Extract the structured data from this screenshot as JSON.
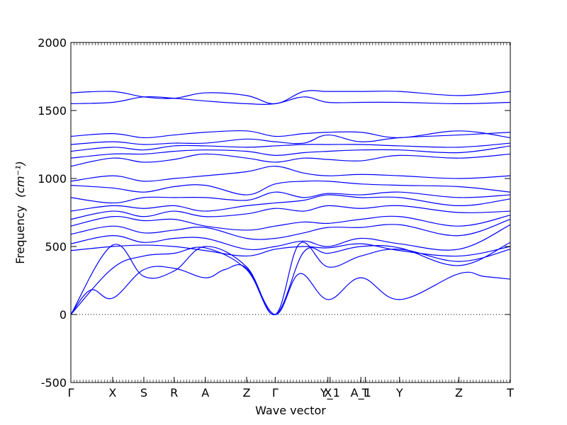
{
  "chart_data": {
    "type": "line",
    "xlabel": "Wave vector",
    "ylabel": "Frequency",
    "ylabel_unit": "(cm⁻¹)",
    "ylim": [
      -500,
      2000
    ],
    "yticks": [
      -500,
      0,
      500,
      1000,
      1500,
      2000
    ],
    "grid": false,
    "line_color": "#0000ff",
    "zero_line": {
      "y": 0,
      "style": "dotted",
      "color": "#000000"
    },
    "high_symmetry_points": [
      {
        "label": "Γ",
        "x": 0.0
      },
      {
        "label": "X",
        "x": 0.095
      },
      {
        "label": "S",
        "x": 0.166
      },
      {
        "label": "R",
        "x": 0.235
      },
      {
        "label": "A",
        "x": 0.306
      },
      {
        "label": "Z",
        "x": 0.4
      },
      {
        "label": "Γ",
        "x": 0.465
      },
      {
        "label": "X",
        "x": 0.585
      },
      {
        "label": "Y_1",
        "x": 0.59
      },
      {
        "label": "A_1",
        "x": 0.66
      },
      {
        "label": "T",
        "x": 0.67
      },
      {
        "label": "Y",
        "x": 0.748
      },
      {
        "label": "Z",
        "x": 0.883
      },
      {
        "label": "T",
        "x": 1.0
      }
    ],
    "series": [
      {
        "x": [
          0,
          0.045,
          0.095,
          0.166,
          0.235,
          0.306,
          0.35,
          0.4,
          0.465,
          0.52,
          0.585,
          0.66,
          0.748,
          0.883,
          0.94,
          1.0
        ],
        "values": [
          0,
          180,
          120,
          330,
          340,
          270,
          330,
          340,
          0,
          300,
          110,
          270,
          110,
          300,
          280,
          260
        ]
      },
      {
        "x": [
          0,
          0.095,
          0.166,
          0.235,
          0.306,
          0.4,
          0.465,
          0.52,
          0.585,
          0.66,
          0.748,
          0.883,
          1.0
        ],
        "values": [
          0,
          510,
          280,
          320,
          500,
          350,
          0,
          520,
          350,
          430,
          480,
          390,
          480
        ]
      },
      {
        "x": [
          0,
          0.095,
          0.166,
          0.235,
          0.306,
          0.4,
          0.465,
          0.53,
          0.585,
          0.66,
          0.748,
          0.883,
          1.0
        ],
        "values": [
          0,
          340,
          430,
          450,
          490,
          330,
          0,
          460,
          450,
          500,
          490,
          360,
          530
        ]
      },
      {
        "x": [
          0,
          0.095,
          0.166,
          0.235,
          0.306,
          0.4,
          0.465,
          0.53,
          0.585,
          0.66,
          0.748,
          0.883,
          1.0
        ],
        "values": [
          470,
          500,
          510,
          500,
          470,
          430,
          480,
          500,
          490,
          520,
          470,
          430,
          500
        ]
      },
      {
        "x": [
          0,
          0.095,
          0.166,
          0.235,
          0.306,
          0.4,
          0.465,
          0.53,
          0.585,
          0.66,
          0.748,
          0.883,
          1.0
        ],
        "values": [
          520,
          580,
          530,
          560,
          560,
          480,
          500,
          540,
          500,
          560,
          520,
          480,
          660
        ]
      },
      {
        "x": [
          0,
          0.095,
          0.166,
          0.235,
          0.306,
          0.4,
          0.465,
          0.53,
          0.585,
          0.66,
          0.748,
          0.883,
          1.0
        ],
        "values": [
          590,
          650,
          600,
          620,
          640,
          560,
          560,
          600,
          640,
          640,
          660,
          580,
          700
        ]
      },
      {
        "x": [
          0,
          0.095,
          0.166,
          0.235,
          0.306,
          0.4,
          0.465,
          0.53,
          0.585,
          0.66,
          0.748,
          0.883,
          1.0
        ],
        "values": [
          650,
          720,
          690,
          700,
          650,
          620,
          650,
          680,
          670,
          700,
          720,
          650,
          730
        ]
      },
      {
        "x": [
          0,
          0.095,
          0.166,
          0.235,
          0.306,
          0.4,
          0.465,
          0.53,
          0.585,
          0.66,
          0.748,
          0.883,
          1.0
        ],
        "values": [
          700,
          760,
          720,
          760,
          720,
          740,
          780,
          760,
          800,
          780,
          800,
          750,
          760
        ]
      },
      {
        "x": [
          0,
          0.095,
          0.166,
          0.235,
          0.306,
          0.4,
          0.465,
          0.53,
          0.585,
          0.66,
          0.748,
          0.883,
          1.0
        ],
        "values": [
          760,
          800,
          780,
          800,
          760,
          800,
          820,
          840,
          880,
          860,
          860,
          800,
          850
        ]
      },
      {
        "x": [
          0,
          0.095,
          0.166,
          0.235,
          0.306,
          0.4,
          0.465,
          0.53,
          0.585,
          0.66,
          0.748,
          0.883,
          1.0
        ],
        "values": [
          860,
          820,
          860,
          860,
          860,
          840,
          900,
          860,
          890,
          880,
          900,
          860,
          880
        ]
      },
      {
        "x": [
          0,
          0.095,
          0.166,
          0.235,
          0.306,
          0.4,
          0.465,
          0.53,
          0.585,
          0.66,
          0.748,
          0.883,
          1.0
        ],
        "values": [
          950,
          930,
          900,
          940,
          950,
          880,
          960,
          980,
          980,
          960,
          950,
          940,
          900
        ]
      },
      {
        "x": [
          0,
          0.095,
          0.166,
          0.235,
          0.306,
          0.4,
          0.465,
          0.53,
          0.585,
          0.66,
          0.748,
          0.883,
          1.0
        ],
        "values": [
          980,
          1020,
          980,
          1000,
          1020,
          1050,
          1090,
          1040,
          1020,
          1030,
          1020,
          1000,
          1020
        ]
      },
      {
        "x": [
          0,
          0.095,
          0.166,
          0.235,
          0.306,
          0.4,
          0.465,
          0.53,
          0.585,
          0.66,
          0.748,
          0.883,
          1.0
        ],
        "values": [
          1090,
          1150,
          1120,
          1140,
          1180,
          1150,
          1120,
          1150,
          1140,
          1130,
          1170,
          1150,
          1180
        ]
      },
      {
        "x": [
          0,
          0.095,
          0.166,
          0.235,
          0.306,
          0.4,
          0.465,
          0.53,
          0.585,
          0.66,
          0.748,
          0.883,
          1.0
        ],
        "values": [
          1150,
          1180,
          1180,
          1200,
          1210,
          1200,
          1170,
          1190,
          1200,
          1210,
          1210,
          1190,
          1240
        ]
      },
      {
        "x": [
          0,
          0.095,
          0.166,
          0.235,
          0.306,
          0.4,
          0.465,
          0.53,
          0.585,
          0.66,
          0.748,
          0.883,
          1.0
        ],
        "values": [
          1200,
          1230,
          1210,
          1240,
          1240,
          1230,
          1240,
          1250,
          1250,
          1250,
          1240,
          1230,
          1260
        ]
      },
      {
        "x": [
          0,
          0.095,
          0.166,
          0.235,
          0.306,
          0.4,
          0.465,
          0.53,
          0.585,
          0.66,
          0.748,
          0.883,
          1.0
        ],
        "values": [
          1250,
          1270,
          1250,
          1260,
          1260,
          1290,
          1270,
          1260,
          1320,
          1270,
          1300,
          1320,
          1340
        ]
      },
      {
        "x": [
          0,
          0.095,
          0.166,
          0.235,
          0.306,
          0.4,
          0.465,
          0.53,
          0.585,
          0.66,
          0.748,
          0.883,
          1.0
        ],
        "values": [
          1310,
          1330,
          1300,
          1320,
          1340,
          1350,
          1310,
          1330,
          1340,
          1340,
          1300,
          1350,
          1300
        ]
      },
      {
        "x": [
          0,
          0.095,
          0.166,
          0.235,
          0.306,
          0.4,
          0.465,
          0.53,
          0.585,
          0.66,
          0.748,
          0.883,
          1.0
        ],
        "values": [
          1550,
          1560,
          1600,
          1590,
          1570,
          1550,
          1550,
          1600,
          1560,
          1560,
          1560,
          1550,
          1560
        ]
      },
      {
        "x": [
          0,
          0.095,
          0.166,
          0.235,
          0.306,
          0.4,
          0.465,
          0.53,
          0.585,
          0.66,
          0.748,
          0.883,
          1.0
        ],
        "values": [
          1630,
          1640,
          1600,
          1590,
          1630,
          1610,
          1550,
          1640,
          1640,
          1640,
          1640,
          1610,
          1640
        ]
      }
    ]
  }
}
